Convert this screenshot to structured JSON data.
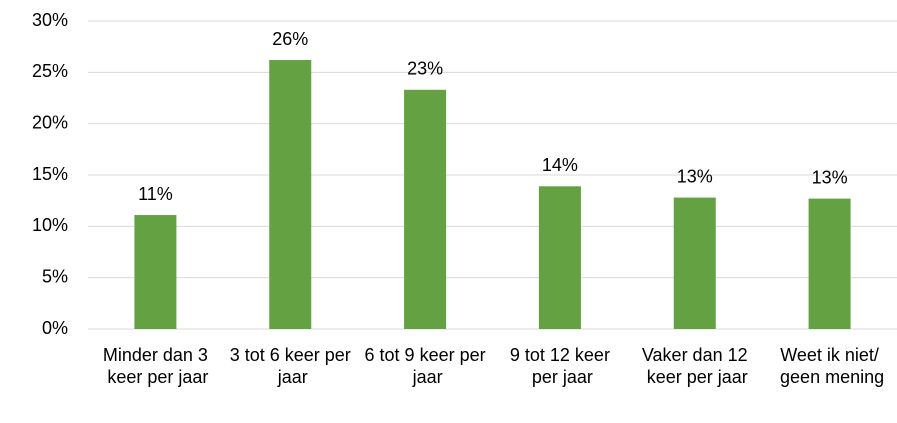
{
  "chart_data": {
    "type": "bar",
    "categories": [
      "Minder dan 3 keer per jaar",
      "3 tot 6 keer per jaar",
      "6 tot 9 keer per jaar",
      "9 tot 12 keer per jaar",
      "Vaker dan 12 keer per jaar",
      "Weet ik niet/ geen mening"
    ],
    "values": [
      11.1,
      26.2,
      23.3,
      13.9,
      12.8,
      12.7
    ],
    "value_labels": [
      "11%",
      "26%",
      "23%",
      "14%",
      "13%",
      "13%"
    ],
    "color": "#63a142",
    "ylim": [
      0,
      30
    ],
    "yticks": [
      {
        "value": 0,
        "label": "0%"
      },
      {
        "value": 5,
        "label": "5%"
      },
      {
        "value": 10,
        "label": "10%"
      },
      {
        "value": 15,
        "label": "15%"
      },
      {
        "value": 20,
        "label": "20%"
      },
      {
        "value": 25,
        "label": "25%"
      },
      {
        "value": 30,
        "label": "30%"
      }
    ],
    "grid": true
  }
}
